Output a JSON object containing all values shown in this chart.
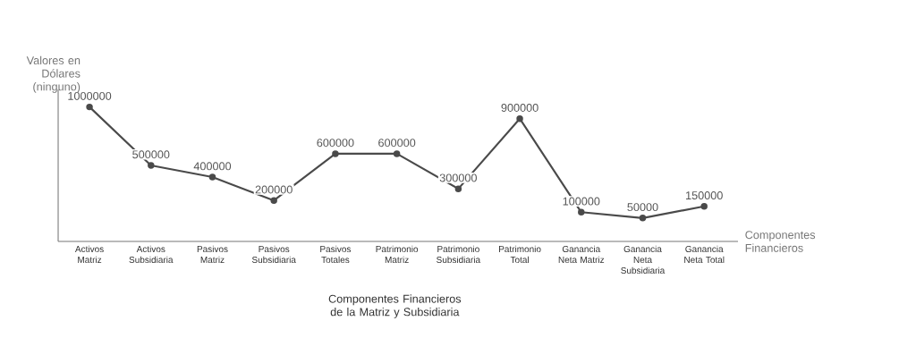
{
  "chart_data": {
    "type": "line",
    "title": "Componentes Financieros de la Matriz y Subsidiaria",
    "xlabel": "Componentes Financieros",
    "ylabel": "Valores en Dólares (ninguno)",
    "categories": [
      "Activos Matriz",
      "Activos Subsidiaria",
      "Pasivos Matriz",
      "Pasivos Subsidiaria",
      "Pasivos Totales",
      "Patrimonio Matriz",
      "Patrimonio Subsidiaria",
      "Patrimonio Total",
      "Ganancia Neta Matriz",
      "Ganancia Neta Subsidiaria",
      "Ganancia Neta Total"
    ],
    "values": [
      1000000,
      500000,
      400000,
      200000,
      600000,
      600000,
      300000,
      900000,
      100000,
      50000,
      150000
    ],
    "color": "#4a4a4a",
    "marker": "circle",
    "data_labels": true,
    "grid": false
  }
}
